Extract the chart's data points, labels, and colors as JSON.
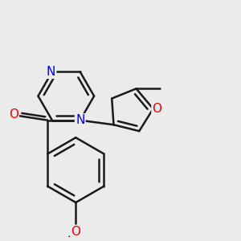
{
  "bg_color": "#ebebeb",
  "bond_color": "#1a1a1a",
  "bond_width": 1.8,
  "atom_colors": {
    "N": "#0000ee",
    "O": "#ee0000",
    "C": "#1a1a1a"
  },
  "font_size": 10,
  "figsize": [
    3.0,
    3.0
  ],
  "dpi": 100
}
